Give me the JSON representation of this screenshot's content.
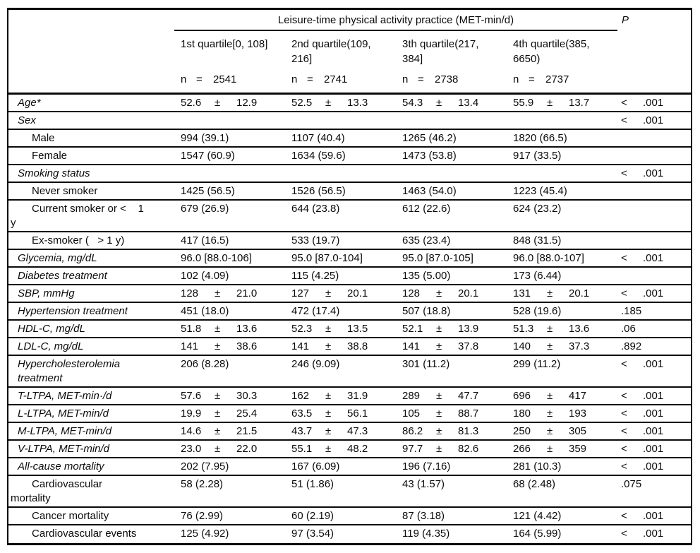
{
  "table": {
    "group_header": "Leisure-time physical activity practice (MET-min/d)",
    "p_header": "P",
    "n_label": "n",
    "eq_symbol": "=",
    "pm_symbol": "±",
    "columns": [
      {
        "label": "1st quartile[0, 108]",
        "n": "2541"
      },
      {
        "label": "2nd quartile(109,\n216]",
        "n": "2741"
      },
      {
        "label": "3th quartile(217,\n384]",
        "n": "2738"
      },
      {
        "label": "4th quartile(385,\n6650)",
        "n": "2737"
      }
    ],
    "rows": [
      {
        "label": "Age*",
        "italic": true,
        "indent": "top",
        "type": "pm",
        "cells": [
          {
            "v": "52.6",
            "sd": "12.9"
          },
          {
            "v": "52.5",
            "sd": "13.3"
          },
          {
            "v": "54.3",
            "sd": "13.4"
          },
          {
            "v": "55.9",
            "sd": "13.7"
          }
        ],
        "p": {
          "lt": "<",
          "v": ".001"
        }
      },
      {
        "label": "Sex",
        "italic": true,
        "indent": "top",
        "type": "empty",
        "cells": [],
        "p": {
          "lt": "<",
          "v": ".001"
        }
      },
      {
        "label": "Male",
        "indent": "sub",
        "type": "text",
        "cells": [
          {
            "v": "994 (39.1)"
          },
          {
            "v": "1107 (40.4)"
          },
          {
            "v": "1265 (46.2)"
          },
          {
            "v": "1820 (66.5)"
          }
        ]
      },
      {
        "label": "Female",
        "indent": "sub",
        "type": "text",
        "cells": [
          {
            "v": "1547 (60.9)"
          },
          {
            "v": "1634 (59.6)"
          },
          {
            "v": "1473 (53.8)"
          },
          {
            "v": "917 (33.5)"
          }
        ]
      },
      {
        "label": "Smoking status",
        "italic": true,
        "indent": "top",
        "type": "empty",
        "cells": [],
        "p": {
          "lt": "<",
          "v": ".001"
        }
      },
      {
        "label": "Never smoker",
        "indent": "sub",
        "type": "text",
        "cells": [
          {
            "v": "1425 (56.5)"
          },
          {
            "v": "1526 (56.5)"
          },
          {
            "v": "1463 (54.0)"
          },
          {
            "v": "1223 (45.4)"
          }
        ]
      },
      {
        "label": "Current smoker or <    1\ny",
        "indent": "sub",
        "type": "text",
        "cells": [
          {
            "v": "679 (26.9)"
          },
          {
            "v": "644 (23.8)"
          },
          {
            "v": "612 (22.6)"
          },
          {
            "v": "624 (23.2)"
          }
        ]
      },
      {
        "label": "Ex-smoker (   > 1 y)",
        "indent": "sub",
        "type": "text",
        "cells": [
          {
            "v": "417 (16.5)"
          },
          {
            "v": "533 (19.7)"
          },
          {
            "v": "635 (23.4)"
          },
          {
            "v": "848 (31.5)"
          }
        ]
      },
      {
        "label": "Glycemia, mg/dL",
        "italic": true,
        "indent": "top",
        "type": "text",
        "cells": [
          {
            "v": "96.0 [88.0-106]"
          },
          {
            "v": "95.0 [87.0-104]"
          },
          {
            "v": "95.0 [87.0-105]"
          },
          {
            "v": "96.0 [88.0-107]"
          }
        ],
        "p": {
          "lt": "<",
          "v": ".001"
        }
      },
      {
        "label": "Diabetes treatment",
        "italic": true,
        "indent": "top",
        "type": "text",
        "cells": [
          {
            "v": "102 (4.09)"
          },
          {
            "v": "115 (4.25)"
          },
          {
            "v": "135 (5.00)"
          },
          {
            "v": "173 (6.44)"
          }
        ]
      },
      {
        "label": "SBP, mmHg",
        "italic": true,
        "indent": "top",
        "type": "pm",
        "cells": [
          {
            "v": "128",
            "sd": "21.0"
          },
          {
            "v": "127",
            "sd": "20.1"
          },
          {
            "v": "128",
            "sd": "20.1"
          },
          {
            "v": "131",
            "sd": "20.1"
          }
        ],
        "p": {
          "lt": "<",
          "v": ".001"
        }
      },
      {
        "label": "Hypertension treatment",
        "italic": true,
        "indent": "top",
        "type": "text",
        "cells": [
          {
            "v": "451 (18.0)"
          },
          {
            "v": "472 (17.4)"
          },
          {
            "v": "507 (18.8)"
          },
          {
            "v": "528 (19.6)"
          }
        ],
        "p": {
          "v": ".185"
        }
      },
      {
        "label": "HDL-C, mg/dL",
        "italic": true,
        "indent": "top",
        "type": "pm",
        "cells": [
          {
            "v": "51.8",
            "sd": "13.6"
          },
          {
            "v": "52.3",
            "sd": "13.5"
          },
          {
            "v": "52.1",
            "sd": "13.9"
          },
          {
            "v": "51.3",
            "sd": "13.6"
          }
        ],
        "p": {
          "v": ".06"
        }
      },
      {
        "label": "LDL-C, mg/dL",
        "italic": true,
        "indent": "top",
        "type": "pm",
        "cells": [
          {
            "v": "141",
            "sd": "38.6"
          },
          {
            "v": "141",
            "sd": "38.8"
          },
          {
            "v": "141",
            "sd": "37.8"
          },
          {
            "v": "140",
            "sd": "37.3"
          }
        ],
        "p": {
          "v": ".892"
        }
      },
      {
        "label": "Hypercholesterolemia\ntreatment",
        "italic": true,
        "indent": "top",
        "type": "text",
        "cells": [
          {
            "v": "206 (8.28)"
          },
          {
            "v": "246 (9.09)"
          },
          {
            "v": "301 (11.2)"
          },
          {
            "v": "299 (11.2)"
          }
        ],
        "p": {
          "lt": "<",
          "v": ".001"
        }
      },
      {
        "label": "T-LTPA, MET-min·/d",
        "italic": true,
        "indent": "top",
        "type": "pm",
        "cells": [
          {
            "v": "57.6",
            "sd": "30.3"
          },
          {
            "v": "162",
            "sd": "31.9"
          },
          {
            "v": "289",
            "sd": "47.7"
          },
          {
            "v": "696",
            "sd": "417"
          }
        ],
        "p": {
          "lt": "<",
          "v": ".001"
        }
      },
      {
        "label": "L-LTPA, MET-min/d",
        "italic": true,
        "indent": "top",
        "type": "pm",
        "cells": [
          {
            "v": "19.9",
            "sd": "25.4"
          },
          {
            "v": "63.5",
            "sd": "56.1"
          },
          {
            "v": "105",
            "sd": "88.7"
          },
          {
            "v": "180",
            "sd": "193"
          }
        ],
        "p": {
          "lt": "<",
          "v": ".001"
        }
      },
      {
        "label": "M-LTPA, MET-min/d",
        "italic": true,
        "indent": "top",
        "type": "pm",
        "cells": [
          {
            "v": "14.6",
            "sd": "21.5"
          },
          {
            "v": "43.7",
            "sd": "47.3"
          },
          {
            "v": "86.2",
            "sd": "81.3"
          },
          {
            "v": "250",
            "sd": "305"
          }
        ],
        "p": {
          "lt": "<",
          "v": ".001"
        }
      },
      {
        "label": "V-LTPA, MET-min/d",
        "italic": true,
        "indent": "top",
        "type": "pm",
        "cells": [
          {
            "v": "23.0",
            "sd": "22.0"
          },
          {
            "v": "55.1",
            "sd": "48.2"
          },
          {
            "v": "97.7",
            "sd": "82.6"
          },
          {
            "v": "266",
            "sd": "359"
          }
        ],
        "p": {
          "lt": "<",
          "v": ".001"
        }
      },
      {
        "label": "All-cause mortality",
        "italic": true,
        "indent": "top",
        "type": "text",
        "cells": [
          {
            "v": "202 (7.95)"
          },
          {
            "v": "167 (6.09)"
          },
          {
            "v": "196 (7.16)"
          },
          {
            "v": "281 (10.3)"
          }
        ],
        "p": {
          "lt": "<",
          "v": ".001"
        }
      },
      {
        "label": "Cardiovascular\nmortality",
        "indent": "sub",
        "type": "text",
        "cells": [
          {
            "v": "58 (2.28)"
          },
          {
            "v": "51 (1.86)"
          },
          {
            "v": "43 (1.57)"
          },
          {
            "v": "68 (2.48)"
          }
        ],
        "p": {
          "v": ".075"
        }
      },
      {
        "label": "Cancer mortality",
        "indent": "sub",
        "type": "text",
        "cells": [
          {
            "v": "76 (2.99)"
          },
          {
            "v": "60 (2.19)"
          },
          {
            "v": "87 (3.18)"
          },
          {
            "v": "121 (4.42)"
          }
        ],
        "p": {
          "lt": "<",
          "v": ".001"
        }
      },
      {
        "label": "Cardiovascular events",
        "indent": "sub",
        "type": "text",
        "cells": [
          {
            "v": "125 (4.92)"
          },
          {
            "v": "97 (3.54)"
          },
          {
            "v": "119 (4.35)"
          },
          {
            "v": "164 (5.99)"
          }
        ],
        "p": {
          "lt": "<",
          "v": ".001"
        }
      }
    ]
  }
}
